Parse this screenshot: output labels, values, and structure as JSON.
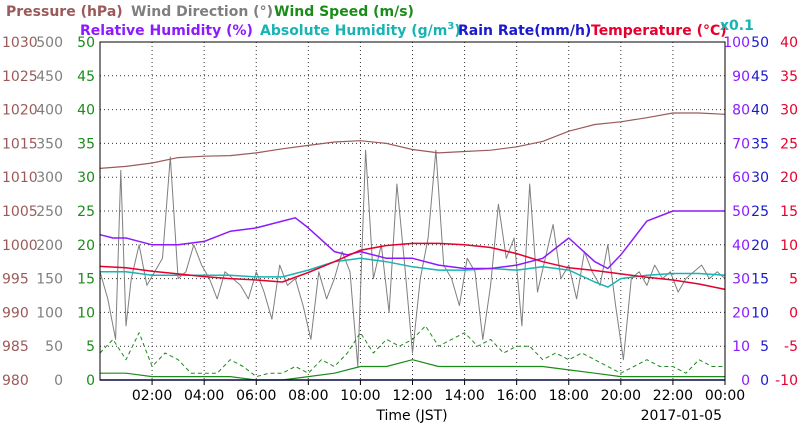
{
  "chart_data": {
    "type": "line",
    "legend": {
      "row1": [
        {
          "id": "pressure",
          "label": "Pressure (hPa)",
          "color": "#9b5a5a"
        },
        {
          "id": "wind_direction",
          "label": "Wind Direction (°)",
          "color": "#7f7f7f"
        },
        {
          "id": "wind_speed",
          "label": "Wind Speed (m/s)",
          "color": "#1a8c1a"
        }
      ],
      "row2": [
        {
          "id": "relative_humidity",
          "label": "Relative Humidity (%)",
          "color": "#8c1aff"
        },
        {
          "id": "absolute_humidity",
          "label": "Absolute Humidity (g/m",
          "sup": "3",
          "tail": ")",
          "color": "#19b3b3"
        },
        {
          "id": "rain_rate",
          "label": "Rain Rate(mm/h)",
          "color": "#1a1acc"
        },
        {
          "id": "temperature",
          "label": "Temperature (°C)",
          "color": "#e6002e"
        },
        {
          "id": "scale_note",
          "label": "x0.1",
          "color": "#19b3b3"
        }
      ]
    },
    "xlabel": "Time (JST)",
    "date_label": "2017-01-05",
    "x_range_hours": [
      0,
      24
    ],
    "x_ticks": [
      {
        "h": 2,
        "label": "02:00"
      },
      {
        "h": 4,
        "label": "04:00"
      },
      {
        "h": 6,
        "label": "06:00"
      },
      {
        "h": 8,
        "label": "08:00"
      },
      {
        "h": 10,
        "label": "10:00"
      },
      {
        "h": 12,
        "label": "12:00"
      },
      {
        "h": 14,
        "label": "14:00"
      },
      {
        "h": 16,
        "label": "16:00"
      },
      {
        "h": 18,
        "label": "18:00"
      },
      {
        "h": 20,
        "label": "20:00"
      },
      {
        "h": 22,
        "label": "22:00"
      },
      {
        "h": 24,
        "label": "00:00"
      }
    ],
    "axes": {
      "pressure": {
        "range": [
          980,
          1030
        ],
        "ticks": [
          "980",
          "985",
          "990",
          "995",
          "1000",
          "1005",
          "1010",
          "1015",
          "1020",
          "1025",
          "1030"
        ],
        "color": "#9b5a5a"
      },
      "wind_direction": {
        "range": [
          0,
          500
        ],
        "ticks": [
          "0",
          "50",
          "100",
          "150",
          "200",
          "250",
          "300",
          "350",
          "400",
          "450",
          "500"
        ],
        "color": "#7f7f7f"
      },
      "wind_speed": {
        "range": [
          0,
          50
        ],
        "ticks": [
          "0",
          "5",
          "10",
          "15",
          "20",
          "25",
          "30",
          "35",
          "40",
          "45",
          "50"
        ],
        "color": "#1a8c1a"
      },
      "relative_humidity": {
        "range": [
          0,
          100
        ],
        "ticks": [
          "0",
          "10",
          "20",
          "30",
          "40",
          "50",
          "60",
          "70",
          "80",
          "90",
          "100"
        ],
        "color": "#8c1aff"
      },
      "rain_rate": {
        "range": [
          0,
          50
        ],
        "ticks": [
          "0",
          "5",
          "10",
          "15",
          "20",
          "25",
          "30",
          "35",
          "40",
          "45",
          "50"
        ],
        "color": "#1a1acc"
      },
      "temperature": {
        "range": [
          -10,
          40
        ],
        "ticks": [
          "-10",
          "-5",
          "0",
          "5",
          "10",
          "15",
          "20",
          "25",
          "30",
          "35",
          "40"
        ],
        "color": "#e6002e"
      }
    },
    "series": [
      {
        "id": "pressure",
        "name": "Pressure (hPa)",
        "axis": "pressure",
        "color": "#9b5a5a",
        "x": [
          0,
          1,
          2,
          3,
          4,
          5,
          6,
          7,
          8,
          9,
          10,
          11,
          12,
          13,
          14,
          15,
          16,
          17,
          18,
          19,
          20,
          21,
          22,
          23,
          24
        ],
        "y": [
          1011.3,
          1011.6,
          1012.1,
          1012.9,
          1013.1,
          1013.2,
          1013.6,
          1014.2,
          1014.7,
          1015.2,
          1015.4,
          1015.0,
          1014.1,
          1013.6,
          1013.8,
          1014.0,
          1014.5,
          1015.3,
          1016.8,
          1017.8,
          1018.2,
          1018.8,
          1019.5,
          1019.5,
          1019.3
        ]
      },
      {
        "id": "relative_humidity",
        "name": "Relative Humidity (%)",
        "axis": "relative_humidity",
        "color": "#8c1aff",
        "x": [
          0,
          0.5,
          1,
          2,
          3,
          4,
          5,
          6,
          7,
          7.5,
          8,
          9,
          9.5,
          10,
          11,
          12,
          13,
          14,
          15,
          16,
          17,
          18,
          19,
          19.5,
          20,
          21,
          22,
          23,
          24
        ],
        "y": [
          43,
          42,
          42,
          40,
          40,
          41,
          44,
          45,
          47,
          48,
          45,
          38,
          37,
          38,
          36,
          36,
          34,
          33,
          33,
          34,
          36,
          42,
          35,
          33,
          37,
          47,
          50,
          50,
          50
        ]
      },
      {
        "id": "absolute_humidity",
        "name": "Absolute Humidity (g/m3)",
        "axis": "relative_humidity",
        "color": "#19b3b3",
        "x": [
          0,
          1,
          2,
          3,
          4,
          5,
          6,
          7,
          8,
          9,
          10,
          11,
          12,
          13,
          14,
          15,
          16,
          17,
          18,
          19,
          19.5,
          20,
          21,
          22,
          23,
          24
        ],
        "y": [
          32,
          32,
          31,
          31,
          31,
          31,
          30.5,
          30.5,
          32.5,
          35,
          36,
          35,
          33.5,
          32.5,
          32.5,
          33,
          32.5,
          33.5,
          32.5,
          29,
          27.5,
          30,
          31,
          31.5,
          31.5,
          31
        ]
      },
      {
        "id": "temperature",
        "name": "Temperature (°C)",
        "axis": "temperature",
        "color": "#e6002e",
        "x": [
          0,
          1,
          2,
          3,
          4,
          5,
          6,
          7,
          8,
          9,
          10,
          11,
          12,
          13,
          14,
          15,
          16,
          17,
          18,
          19,
          20,
          21,
          22,
          23,
          24
        ],
        "y": [
          6.8,
          6.6,
          6.1,
          5.7,
          5.3,
          5.0,
          4.8,
          4.5,
          5.9,
          7.5,
          9.2,
          9.9,
          10.2,
          10.2,
          10.0,
          9.6,
          8.7,
          7.5,
          6.6,
          6.2,
          5.7,
          5.2,
          4.8,
          4.2,
          3.4
        ]
      },
      {
        "id": "wind_direction",
        "name": "Wind Direction (°)",
        "axis": "wind_direction",
        "color": "#7f7f7f",
        "x": [
          0,
          0.3,
          0.6,
          0.8,
          1.0,
          1.2,
          1.5,
          1.8,
          2.1,
          2.4,
          2.7,
          3.0,
          3.3,
          3.6,
          3.9,
          4.2,
          4.5,
          4.8,
          5.1,
          5.4,
          5.7,
          6.0,
          6.3,
          6.6,
          6.9,
          7.2,
          7.5,
          7.8,
          8.1,
          8.4,
          8.7,
          9.0,
          9.3,
          9.6,
          9.9,
          10.2,
          10.5,
          10.8,
          11.1,
          11.4,
          11.7,
          12.0,
          12.3,
          12.6,
          12.9,
          13.2,
          13.5,
          13.8,
          14.1,
          14.4,
          14.7,
          15.0,
          15.3,
          15.6,
          15.9,
          16.2,
          16.5,
          16.8,
          17.1,
          17.4,
          17.7,
          18.0,
          18.3,
          18.6,
          18.9,
          19.2,
          19.5,
          19.8,
          20.1,
          20.4,
          20.7,
          21.0,
          21.3,
          21.6,
          21.9,
          22.2,
          22.5,
          22.8,
          23.1,
          23.4,
          23.7,
          24.0
        ],
        "y": [
          160,
          120,
          60,
          310,
          80,
          150,
          200,
          140,
          160,
          180,
          330,
          150,
          160,
          200,
          170,
          150,
          120,
          160,
          150,
          140,
          120,
          160,
          130,
          90,
          170,
          140,
          150,
          110,
          60,
          160,
          120,
          150,
          190,
          160,
          20,
          340,
          150,
          200,
          100,
          290,
          170,
          40,
          150,
          210,
          340,
          170,
          150,
          110,
          180,
          160,
          60,
          140,
          260,
          180,
          210,
          80,
          290,
          130,
          180,
          230,
          150,
          170,
          120,
          190,
          160,
          140,
          200,
          110,
          30,
          150,
          160,
          140,
          170,
          150,
          160,
          130,
          150,
          160,
          170,
          150,
          160,
          150
        ]
      },
      {
        "id": "wind_speed",
        "name": "Wind Speed (m/s)",
        "axis": "wind_speed",
        "color": "#1a8c1a",
        "x": [
          0,
          0.5,
          1,
          1.5,
          2,
          2.5,
          3,
          3.5,
          4,
          4.5,
          5,
          5.5,
          6,
          6.5,
          7,
          7.5,
          8,
          8.5,
          9,
          9.5,
          10,
          10.5,
          11,
          11.5,
          12,
          12.5,
          13,
          13.5,
          14,
          14.5,
          15,
          15.5,
          16,
          16.5,
          17,
          17.5,
          18,
          18.5,
          19,
          19.5,
          20,
          20.5,
          21,
          21.5,
          22,
          22.5,
          23,
          23.5,
          24
        ],
        "y": [
          4,
          6,
          3,
          7,
          2,
          4,
          3,
          1,
          1,
          1,
          3,
          2,
          0.5,
          1,
          1,
          2,
          1,
          3,
          2,
          4,
          7,
          4,
          6,
          5,
          6,
          8,
          5,
          6,
          7,
          5,
          6,
          4,
          5,
          5,
          3,
          4,
          3,
          4,
          3,
          2,
          1,
          2,
          3,
          2,
          2,
          1,
          3,
          2,
          2
        ]
      },
      {
        "id": "wind_speed_min",
        "name": "Wind Speed (m/s)",
        "axis": "wind_speed",
        "color": "#1a8c1a",
        "x": [
          0,
          1,
          2,
          3,
          4,
          5,
          6,
          7,
          8,
          9,
          10,
          11,
          12,
          13,
          14,
          15,
          16,
          17,
          18,
          19,
          20,
          21,
          22,
          23,
          24
        ],
        "y": [
          1,
          1,
          0.5,
          0.5,
          0.5,
          0.5,
          0,
          0,
          0.5,
          1,
          2,
          2,
          3,
          2,
          2,
          2,
          2,
          2,
          1.5,
          1,
          0.5,
          0.5,
          0.5,
          0.5,
          0.5
        ]
      },
      {
        "id": "rain_rate",
        "name": "Rain Rate(mm/h)",
        "axis": "rain_rate",
        "color": "#1a1acc",
        "x": [
          0,
          24
        ],
        "y": [
          0,
          0
        ]
      }
    ],
    "grid": true
  }
}
